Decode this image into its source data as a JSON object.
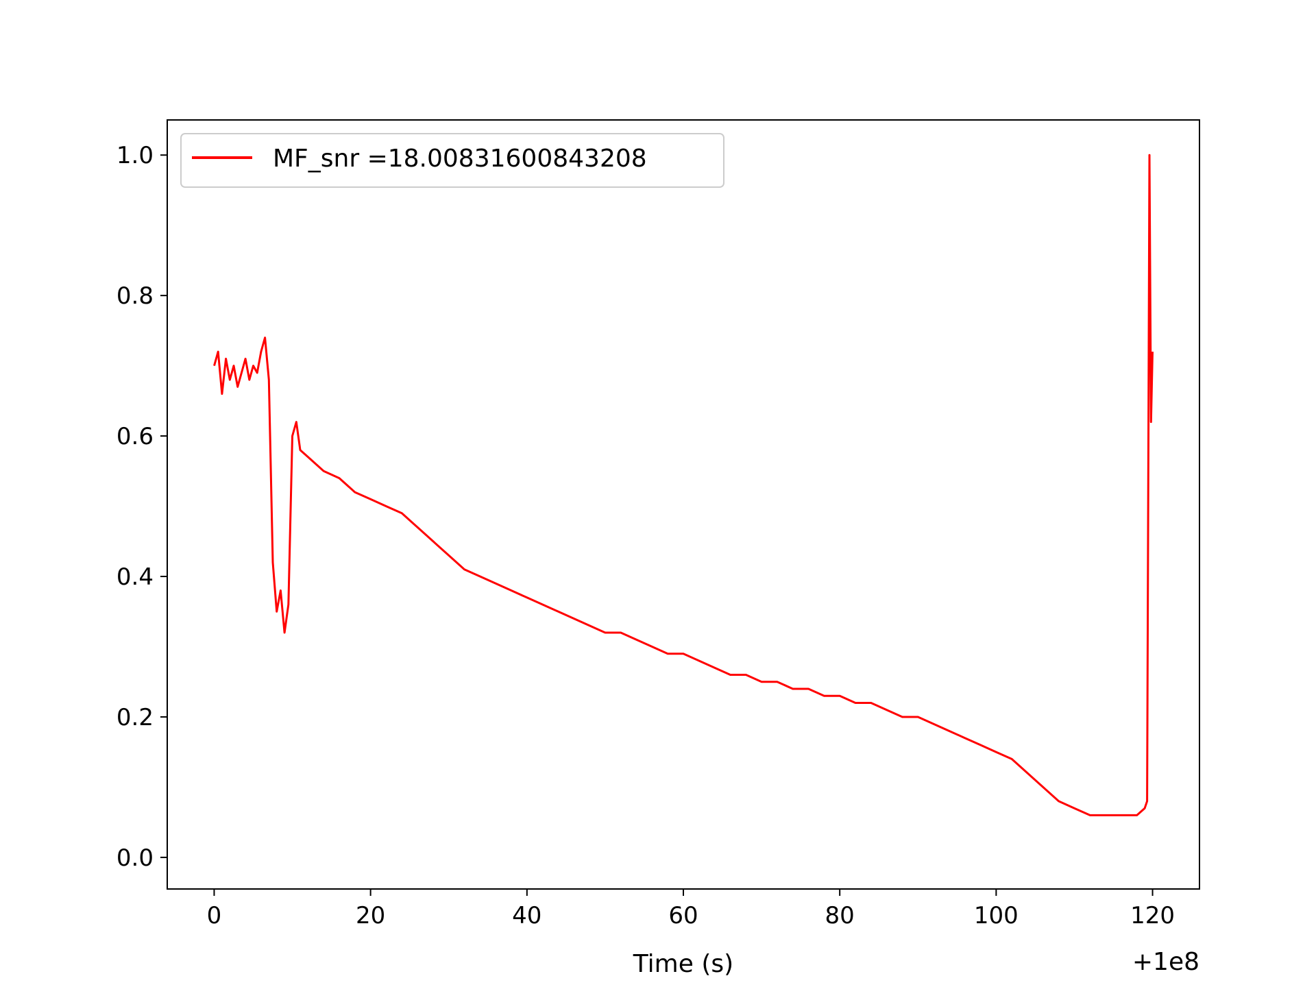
{
  "chart_data": {
    "type": "line",
    "title": "",
    "xlabel": "Time (s)",
    "ylabel": "",
    "x_offset_label": "+1e8",
    "xlim": [
      -6,
      126
    ],
    "ylim": [
      -0.045,
      1.05
    ],
    "x_ticks": [
      0,
      20,
      40,
      60,
      80,
      100,
      120
    ],
    "x_tick_labels": [
      "0",
      "20",
      "40",
      "60",
      "80",
      "100",
      "120"
    ],
    "y_ticks": [
      0.0,
      0.2,
      0.4,
      0.6,
      0.8,
      1.0
    ],
    "y_tick_labels": [
      "0.0",
      "0.2",
      "0.4",
      "0.6",
      "0.8",
      "1.0"
    ],
    "grid": false,
    "legend": {
      "position": "top-left"
    },
    "series": [
      {
        "name": "MF_snr =18.00831600843208",
        "color": "#ff0000",
        "x": [
          0,
          0.5,
          1,
          1.5,
          2,
          2.5,
          3,
          3.5,
          4,
          4.5,
          5,
          5.5,
          6,
          6.5,
          7,
          7.5,
          8,
          8.5,
          9,
          9.5,
          10,
          10.5,
          11,
          12,
          14,
          16,
          18,
          20,
          22,
          24,
          26,
          28,
          30,
          32,
          34,
          36,
          38,
          40,
          42,
          44,
          46,
          48,
          50,
          52,
          54,
          56,
          58,
          60,
          62,
          64,
          66,
          68,
          70,
          72,
          74,
          76,
          78,
          80,
          82,
          84,
          86,
          88,
          90,
          92,
          94,
          96,
          98,
          100,
          102,
          104,
          106,
          108,
          110,
          112,
          114,
          116,
          118,
          119,
          119.3,
          119.6,
          119.8,
          120
        ],
        "y": [
          0.7,
          0.72,
          0.66,
          0.71,
          0.68,
          0.7,
          0.67,
          0.69,
          0.71,
          0.68,
          0.7,
          0.69,
          0.72,
          0.74,
          0.68,
          0.42,
          0.35,
          0.38,
          0.32,
          0.36,
          0.6,
          0.62,
          0.58,
          0.57,
          0.55,
          0.54,
          0.52,
          0.51,
          0.5,
          0.49,
          0.47,
          0.45,
          0.43,
          0.41,
          0.4,
          0.39,
          0.38,
          0.37,
          0.36,
          0.35,
          0.34,
          0.33,
          0.32,
          0.32,
          0.31,
          0.3,
          0.29,
          0.29,
          0.28,
          0.27,
          0.26,
          0.26,
          0.25,
          0.25,
          0.24,
          0.24,
          0.23,
          0.23,
          0.22,
          0.22,
          0.21,
          0.2,
          0.2,
          0.19,
          0.18,
          0.17,
          0.16,
          0.15,
          0.14,
          0.12,
          0.1,
          0.08,
          0.07,
          0.06,
          0.06,
          0.06,
          0.06,
          0.07,
          0.08,
          1.0,
          0.62,
          0.72
        ]
      }
    ]
  }
}
